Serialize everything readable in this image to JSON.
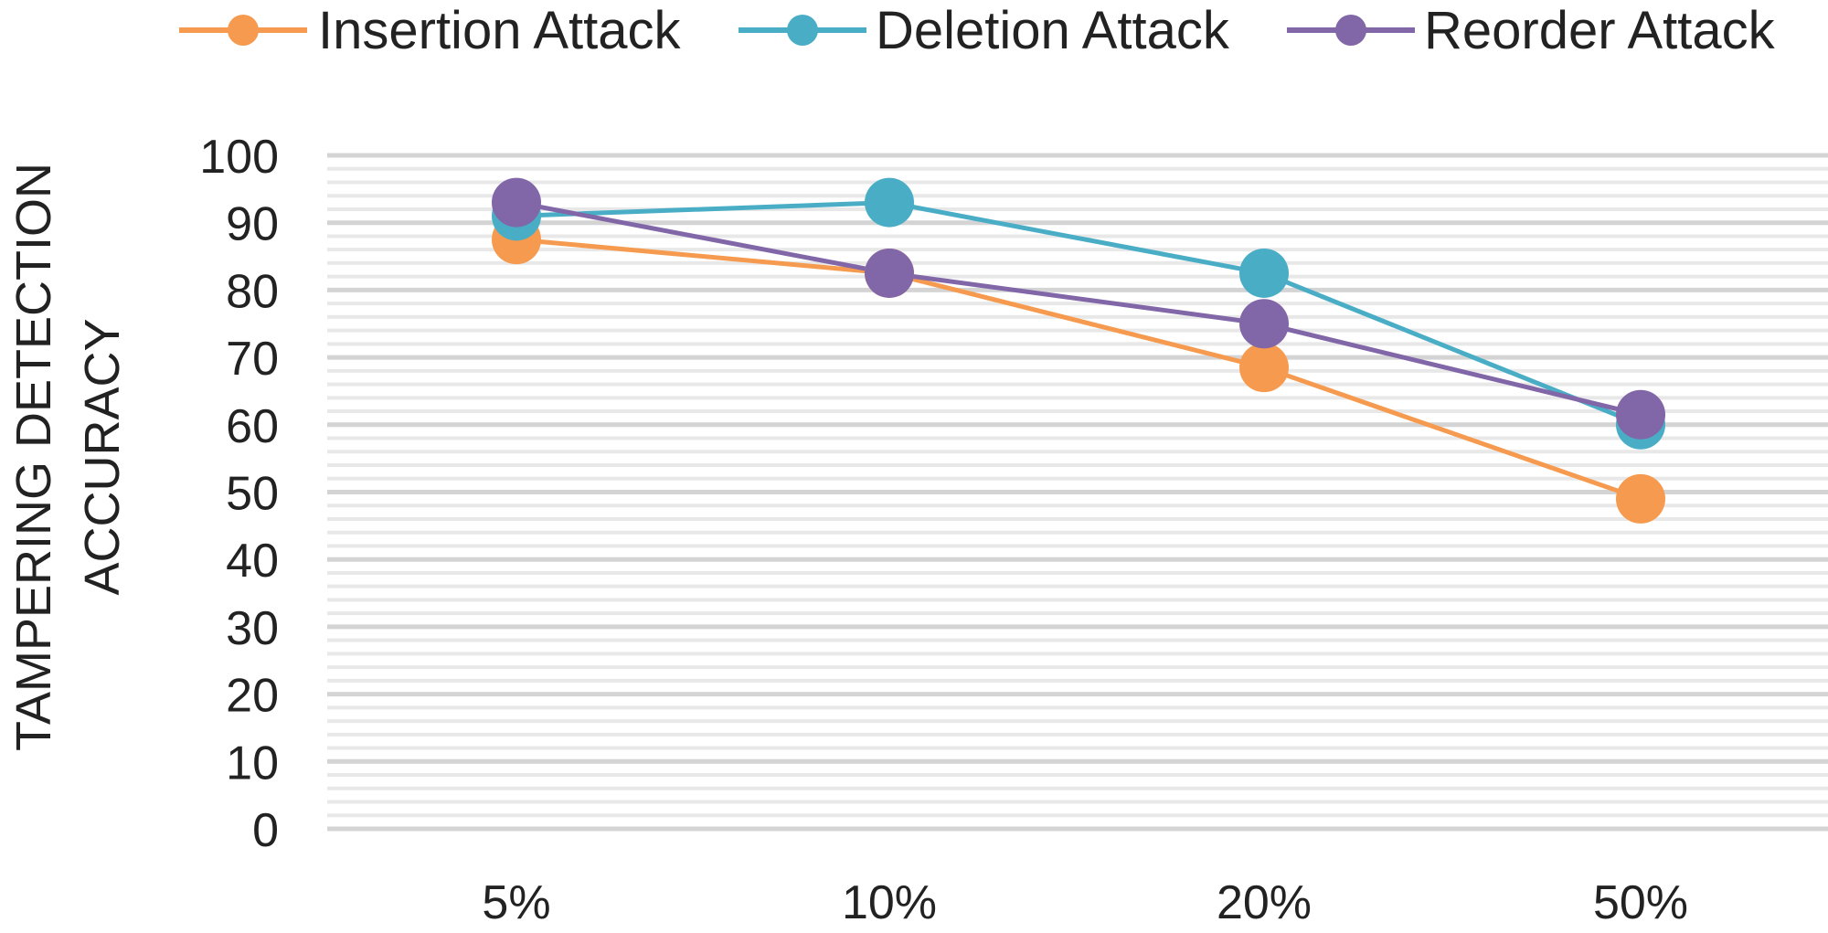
{
  "chart_data": {
    "type": "line",
    "title": "",
    "xlabel": "",
    "ylabel_lines": [
      "TAMPERING DETECTION",
      "ACCURACY"
    ],
    "categories": [
      "5%",
      "10%",
      "20%",
      "50%"
    ],
    "ylim": [
      0,
      100
    ],
    "yticks": [
      0,
      10,
      20,
      30,
      40,
      50,
      60,
      70,
      80,
      90,
      100
    ],
    "grid": true,
    "legend_position": "top",
    "series": [
      {
        "name": "Insertion Attack",
        "color": "#F59A4E",
        "values": [
          87.5,
          82.5,
          68.5,
          49
        ]
      },
      {
        "name": "Deletion Attack",
        "color": "#4AADC6",
        "values": [
          91,
          93,
          82.5,
          60
        ]
      },
      {
        "name": "Reorder Attack",
        "color": "#8166A8",
        "values": [
          93,
          82.5,
          75,
          61.5
        ]
      }
    ]
  }
}
